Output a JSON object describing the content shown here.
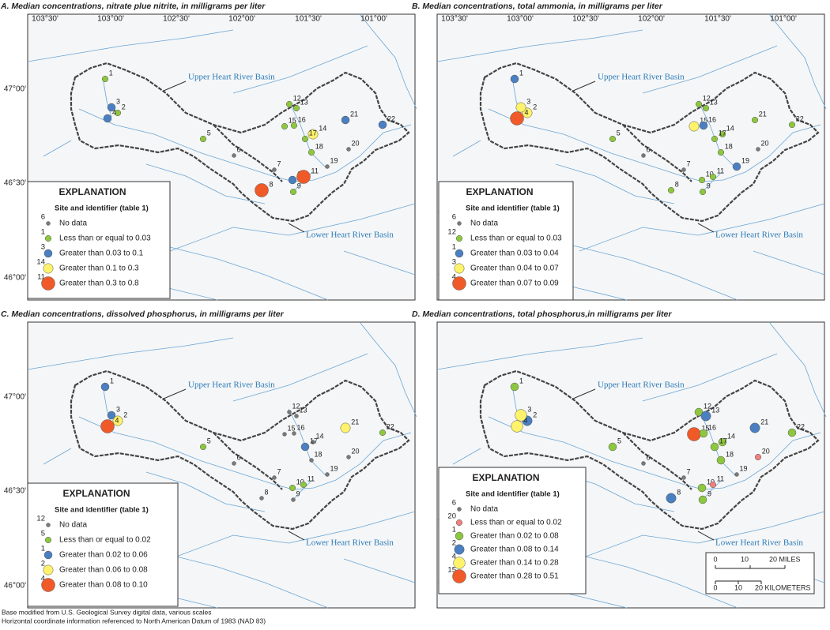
{
  "panels": [
    {
      "title": "A. Median concentrations, nitrate plue nitrite, in milligrams per liter",
      "longitude_labels": [
        "103°30'",
        "103°00'",
        "102°30'",
        "102°00'",
        "101°30'",
        "101°00'"
      ],
      "latitude_labels": [
        "47°00'",
        "46°30'",
        "46°00'"
      ],
      "basin_labels": [
        "Upper Heart River Basin",
        "Lower Heart River Basin"
      ],
      "legend": {
        "title": "EXPLANATION",
        "subtitle": "Site and identifier (table 1)",
        "entries": [
          {
            "site": "6",
            "label": "No data",
            "color": "#7a7a7a"
          },
          {
            "site": "1",
            "label": "Less than or equal to 0.03",
            "color": "#8dc63f"
          },
          {
            "site": "3",
            "label": "Greater than 0.03 to 0.1",
            "color": "#4a7fc1"
          },
          {
            "site": "14",
            "label": "Greater than 0.1 to 0.3",
            "color": "#fff36b"
          },
          {
            "site": "11",
            "label": "Greater than 0.3 to 0.8",
            "color": "#f05a28"
          }
        ]
      },
      "sites": [
        {
          "id": "1",
          "class": 1
        },
        {
          "id": "2",
          "class": 1
        },
        {
          "id": "3",
          "class": 2
        },
        {
          "id": "4",
          "class": 2
        },
        {
          "id": "5",
          "class": 1
        },
        {
          "id": "6",
          "class": 0
        },
        {
          "id": "7",
          "class": 0
        },
        {
          "id": "8",
          "class": 4
        },
        {
          "id": "9",
          "class": 1
        },
        {
          "id": "10",
          "class": 2
        },
        {
          "id": "11",
          "class": 4
        },
        {
          "id": "12",
          "class": 1
        },
        {
          "id": "13",
          "class": 1
        },
        {
          "id": "14",
          "class": 3
        },
        {
          "id": "15",
          "class": 1
        },
        {
          "id": "16",
          "class": 1
        },
        {
          "id": "17",
          "class": 1
        },
        {
          "id": "18",
          "class": 1
        },
        {
          "id": "19",
          "class": 0
        },
        {
          "id": "20",
          "class": 0
        },
        {
          "id": "21",
          "class": 2
        },
        {
          "id": "22",
          "class": 2
        }
      ]
    },
    {
      "title": "B. Median concentrations, total ammonia, in milligrams per liter",
      "longitude_labels": [
        "103°30'",
        "103°00'",
        "102°30'",
        "102°00'",
        "101°30'",
        "101°00'"
      ],
      "basin_labels": [
        "Upper Heart River Basin",
        "Lower Heart River Basin"
      ],
      "legend": {
        "title": "EXPLANATION",
        "subtitle": "Site and identifier (table 1)",
        "entries": [
          {
            "site": "6",
            "label": "No data",
            "color": "#7a7a7a"
          },
          {
            "site": "12",
            "label": "Less than or equal to 0.03",
            "color": "#8dc63f"
          },
          {
            "site": "1",
            "label": "Greater than 0.03 to 0.04",
            "color": "#4a7fc1"
          },
          {
            "site": "3",
            "label": "Greater than 0.04 to 0.07",
            "color": "#fff36b"
          },
          {
            "site": "4",
            "label": "Greater than 0.07 to 0.09",
            "color": "#f05a28"
          }
        ]
      },
      "sites": [
        {
          "id": "1",
          "class": 2
        },
        {
          "id": "2",
          "class": 3
        },
        {
          "id": "3",
          "class": 3
        },
        {
          "id": "4",
          "class": 4
        },
        {
          "id": "5",
          "class": 1
        },
        {
          "id": "6",
          "class": 0
        },
        {
          "id": "7",
          "class": 0
        },
        {
          "id": "8",
          "class": 1
        },
        {
          "id": "9",
          "class": 1
        },
        {
          "id": "10",
          "class": 1
        },
        {
          "id": "11",
          "class": 1
        },
        {
          "id": "12",
          "class": 1
        },
        {
          "id": "13",
          "class": 1
        },
        {
          "id": "14",
          "class": 1
        },
        {
          "id": "15",
          "class": 3
        },
        {
          "id": "16",
          "class": 2
        },
        {
          "id": "17",
          "class": 1
        },
        {
          "id": "18",
          "class": 1
        },
        {
          "id": "19",
          "class": 2
        },
        {
          "id": "20",
          "class": 0
        },
        {
          "id": "21",
          "class": 1
        },
        {
          "id": "22",
          "class": 1
        }
      ]
    },
    {
      "title": "C. Median concentrations, dissolved phosphorus, in milligrams per liter",
      "latitude_labels": [
        "47°00'",
        "46°30'",
        "46°00'"
      ],
      "basin_labels": [
        "Upper Heart River Basin",
        "Lower Heart River Basin"
      ],
      "legend": {
        "title": "EXPLANATION",
        "subtitle": "Site and identifier (table 1)",
        "entries": [
          {
            "site": "12",
            "label": "No data",
            "color": "#7a7a7a"
          },
          {
            "site": "5",
            "label": "Less than or equal to 0.02",
            "color": "#8dc63f"
          },
          {
            "site": "1",
            "label": "Greater than 0.02 to 0.06",
            "color": "#4a7fc1"
          },
          {
            "site": "2",
            "label": "Greater than 0.06 to 0.08",
            "color": "#fff36b"
          },
          {
            "site": "4",
            "label": "Greater than 0.08 to 0.10",
            "color": "#f05a28"
          }
        ]
      },
      "sites": [
        {
          "id": "1",
          "class": 2
        },
        {
          "id": "2",
          "class": 3
        },
        {
          "id": "3",
          "class": 2
        },
        {
          "id": "4",
          "class": 4
        },
        {
          "id": "5",
          "class": 1
        },
        {
          "id": "6",
          "class": 0
        },
        {
          "id": "7",
          "class": 0
        },
        {
          "id": "8",
          "class": 0
        },
        {
          "id": "9",
          "class": 0
        },
        {
          "id": "10",
          "class": 1
        },
        {
          "id": "11",
          "class": 1
        },
        {
          "id": "12",
          "class": 0
        },
        {
          "id": "13",
          "class": 0
        },
        {
          "id": "14",
          "class": 0
        },
        {
          "id": "15",
          "class": 0
        },
        {
          "id": "16",
          "class": 0
        },
        {
          "id": "17",
          "class": 2
        },
        {
          "id": "18",
          "class": 0
        },
        {
          "id": "19",
          "class": 0
        },
        {
          "id": "20",
          "class": 0
        },
        {
          "id": "21",
          "class": 3
        },
        {
          "id": "22",
          "class": 1
        }
      ]
    },
    {
      "title": "D. Median concentrations, total phosphorus,in milligrams per liter",
      "basin_labels": [
        "Upper Heart River Basin",
        "Lower Heart River Basin"
      ],
      "legend": {
        "title": "EXPLANATION",
        "subtitle": "Site and identifier (table 1)",
        "entries": [
          {
            "site": "6",
            "label": "No data",
            "color": "#7a7a7a"
          },
          {
            "site": "20",
            "label": "Less than or equal to 0.02",
            "color": "#f08080"
          },
          {
            "site": "1",
            "label": "Greater than 0.02 to 0.08",
            "color": "#8dc63f"
          },
          {
            "site": "2",
            "label": "Greater than 0.08 to 0.14",
            "color": "#4a7fc1"
          },
          {
            "site": "4",
            "label": "Greater than 0.14 to 0.28",
            "color": "#fff36b"
          },
          {
            "site": "15",
            "label": "Greater than 0.28 to 0.51",
            "color": "#f05a28"
          }
        ]
      },
      "sites": [
        {
          "id": "1",
          "class": 2
        },
        {
          "id": "2",
          "class": 3
        },
        {
          "id": "3",
          "class": 4
        },
        {
          "id": "4",
          "class": 4
        },
        {
          "id": "5",
          "class": 2
        },
        {
          "id": "6",
          "class": 0
        },
        {
          "id": "7",
          "class": 0
        },
        {
          "id": "8",
          "class": 3
        },
        {
          "id": "9",
          "class": 2
        },
        {
          "id": "10",
          "class": 2
        },
        {
          "id": "11",
          "class": 1
        },
        {
          "id": "12",
          "class": 2
        },
        {
          "id": "13",
          "class": 3
        },
        {
          "id": "14",
          "class": 2
        },
        {
          "id": "15",
          "class": 5
        },
        {
          "id": "16",
          "class": 2
        },
        {
          "id": "17",
          "class": 2
        },
        {
          "id": "18",
          "class": 2
        },
        {
          "id": "19",
          "class": 0
        },
        {
          "id": "20",
          "class": 1
        },
        {
          "id": "21",
          "class": 3
        },
        {
          "id": "22",
          "class": 2
        }
      ]
    }
  ],
  "scale_bar": {
    "miles": [
      "0",
      "10",
      "20 MILES"
    ],
    "kilometers": [
      "0",
      "10",
      "20 KILOMETERS"
    ]
  },
  "footnotes": [
    "Base modified from U.S. Geological Survey digital data, various scales",
    "Horizontal coordinate information referenced to North American Datum of 1983 (NAD 83)"
  ]
}
